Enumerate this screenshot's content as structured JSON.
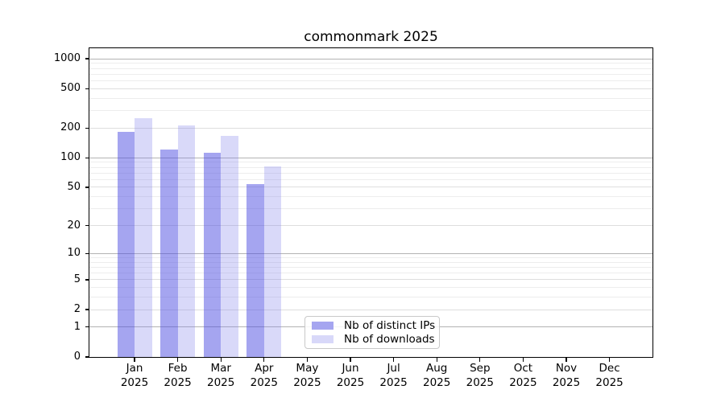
{
  "chart_data": {
    "type": "bar",
    "title": "commonmark 2025",
    "categories": [
      "Jan 2025",
      "Feb 2025",
      "Mar 2025",
      "Apr 2025",
      "May 2025",
      "Jun 2025",
      "Jul 2025",
      "Aug 2025",
      "Sep 2025",
      "Oct 2025",
      "Nov 2025",
      "Dec 2025"
    ],
    "series": [
      {
        "name": "Nb of distinct IPs",
        "color": "#a5a5f0",
        "fill_rgba": "rgba(75,75,225,0.5)",
        "values": [
          182,
          122,
          112,
          54,
          0,
          0,
          0,
          0,
          0,
          0,
          0,
          0
        ]
      },
      {
        "name": "Nb of downloads",
        "color": "#d8d8f9",
        "fill_rgba": "rgba(130,130,235,0.3)",
        "values": [
          253,
          212,
          167,
          81,
          0,
          0,
          0,
          0,
          0,
          0,
          0,
          0
        ]
      }
    ],
    "yscale": "log1p",
    "yticks": [
      0,
      1,
      2,
      5,
      10,
      20,
      50,
      100,
      200,
      500,
      1000
    ],
    "ytick_labels": [
      "0",
      "1",
      "2",
      "5",
      "10",
      "20",
      "50",
      "100",
      "200",
      "500",
      "1000"
    ],
    "minor_gridlines": [
      3,
      4,
      6,
      7,
      8,
      9,
      30,
      40,
      60,
      70,
      80,
      90,
      300,
      400,
      600,
      700,
      800,
      900
    ],
    "ylim": [
      0,
      1280
    ],
    "xlabel": "",
    "ylabel": "",
    "grid": true,
    "legend_position": "lower-center-inside",
    "colors": {
      "grid_major": "#b3b3b3",
      "grid_labeled": "#dedede",
      "grid_minor": "#ededed",
      "spine": "#000000",
      "background": "#ffffff"
    }
  }
}
